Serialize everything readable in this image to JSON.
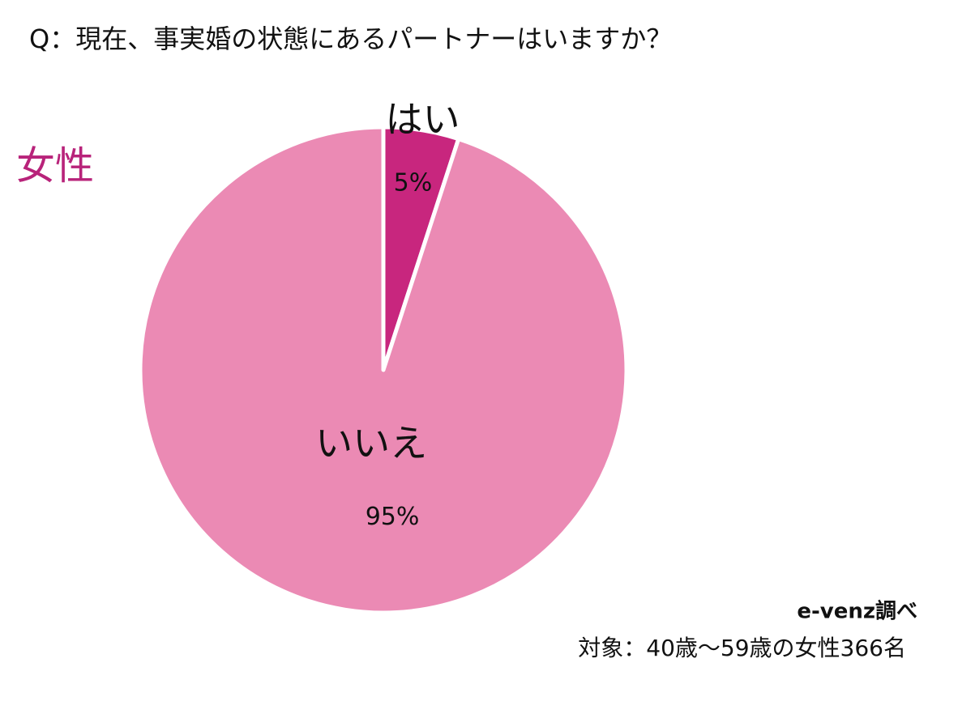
{
  "chart_data": {
    "type": "pie",
    "title": "Q：現在、事実婚の状態にあるパートナーはいますか？",
    "subtitle": "女性",
    "categories": [
      "はい",
      "いいえ"
    ],
    "values": [
      5,
      95
    ],
    "value_labels": [
      "5%",
      "95%"
    ],
    "colors": [
      "#c8267e",
      "#eb8ab4"
    ],
    "source": "e-venz調べ",
    "note": "対象：40歳〜59歳の女性366名"
  }
}
